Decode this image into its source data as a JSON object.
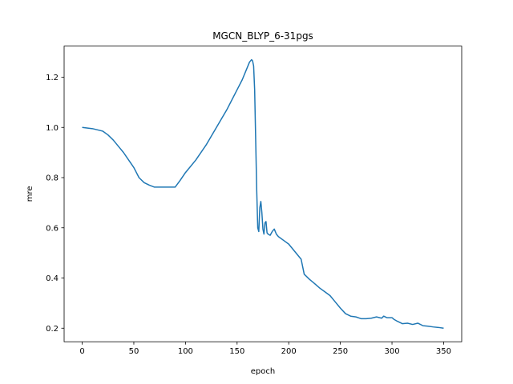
{
  "chart_data": {
    "type": "line",
    "title": "MGCN_BLYP_6-31pgs",
    "xlabel": "epoch",
    "ylabel": "mre",
    "xlim": [
      -17.5,
      367.5
    ],
    "ylim": [
      0.146,
      1.324
    ],
    "xticks": [
      0,
      50,
      100,
      150,
      200,
      250,
      300,
      350
    ],
    "yticks": [
      0.2,
      0.4,
      0.6,
      0.8,
      1.0,
      1.2
    ],
    "xtick_labels": [
      "0",
      "50",
      "100",
      "150",
      "200",
      "250",
      "300",
      "350"
    ],
    "ytick_labels": [
      "0.2",
      "0.4",
      "0.6",
      "0.8",
      "1.0",
      "1.2"
    ],
    "grid": false,
    "legend": "none",
    "series": [
      {
        "color": "#1f77b4",
        "x": [
          0,
          10,
          20,
          25,
          30,
          35,
          40,
          45,
          50,
          55,
          60,
          65,
          70,
          75,
          80,
          85,
          90,
          95,
          100,
          110,
          120,
          130,
          140,
          150,
          155,
          160,
          162,
          164,
          165,
          166,
          167,
          168,
          169,
          170,
          171,
          172,
          173,
          174,
          175,
          176,
          177,
          178,
          179,
          180,
          182,
          184,
          186,
          188,
          190,
          195,
          200,
          205,
          210,
          212,
          215,
          220,
          225,
          230,
          235,
          240,
          245,
          250,
          255,
          260,
          265,
          270,
          275,
          280,
          285,
          290,
          292,
          295,
          300,
          302,
          305,
          310,
          315,
          320,
          325,
          330,
          335,
          340,
          345,
          350
        ],
        "y": [
          1.0,
          0.995,
          0.985,
          0.97,
          0.95,
          0.925,
          0.9,
          0.87,
          0.84,
          0.8,
          0.78,
          0.77,
          0.762,
          0.762,
          0.762,
          0.762,
          0.762,
          0.79,
          0.82,
          0.87,
          0.93,
          1.0,
          1.07,
          1.15,
          1.19,
          1.24,
          1.26,
          1.27,
          1.265,
          1.245,
          1.15,
          0.95,
          0.75,
          0.6,
          0.585,
          0.68,
          0.705,
          0.66,
          0.595,
          0.575,
          0.62,
          0.625,
          0.58,
          0.575,
          0.57,
          0.585,
          0.595,
          0.575,
          0.565,
          0.55,
          0.535,
          0.51,
          0.485,
          0.475,
          0.415,
          0.395,
          0.378,
          0.36,
          0.345,
          0.33,
          0.305,
          0.28,
          0.258,
          0.248,
          0.245,
          0.238,
          0.238,
          0.24,
          0.245,
          0.24,
          0.248,
          0.242,
          0.242,
          0.235,
          0.228,
          0.218,
          0.22,
          0.215,
          0.22,
          0.21,
          0.208,
          0.205,
          0.203,
          0.2
        ]
      }
    ]
  }
}
